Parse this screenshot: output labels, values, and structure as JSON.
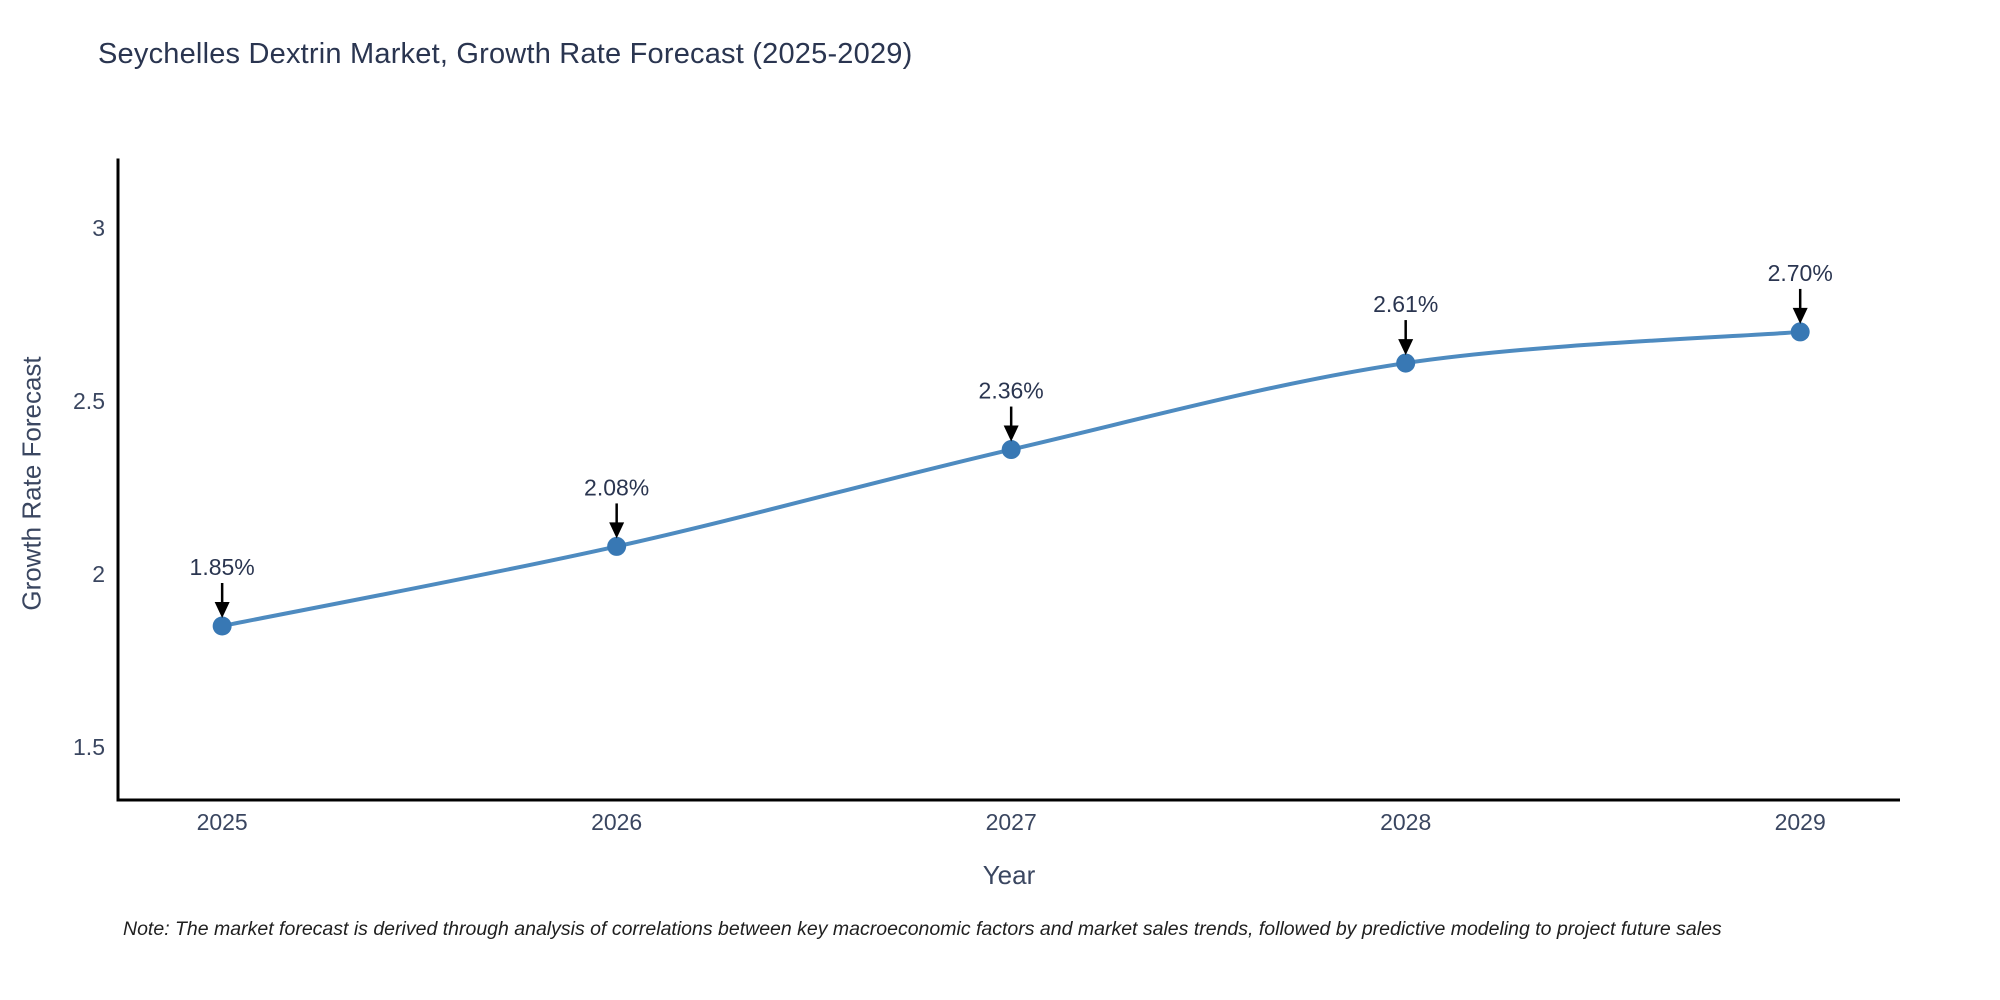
{
  "header": {
    "title": "Seychelles Dextrin Market, Growth Rate Forecast (2025-2029)"
  },
  "chart_data": {
    "type": "line",
    "title": "Seychelles Dextrin Market, Growth Rate Forecast (2025-2029)",
    "xlabel": "Year",
    "ylabel": "Growth Rate Forecast",
    "categories": [
      "2025",
      "2026",
      "2027",
      "2028",
      "2029"
    ],
    "x": [
      2025,
      2026,
      2027,
      2028,
      2029
    ],
    "values": [
      1.85,
      2.08,
      2.36,
      2.61,
      2.7
    ],
    "point_labels": [
      "1.85%",
      "2.08%",
      "2.36%",
      "2.61%",
      "2.70%"
    ],
    "yticks": [
      1.5,
      2,
      2.5,
      3
    ],
    "ytick_labels": [
      "1.5",
      "2",
      "2.5",
      "3"
    ],
    "xlim": [
      2024.736,
      2029.253
    ],
    "ylim": [
      1.347,
      3.197
    ],
    "grid": false,
    "legend": "none",
    "line_color": "#4e8bc0",
    "marker_color": "#3878b4",
    "axis_color": "#000000",
    "tick_color": "#3a4660",
    "annotation_color": "#2a3550",
    "arrow_color": "#000000"
  },
  "note": {
    "text": "Note: The market forecast is derived through analysis of correlations between key macroeconomic factors and market sales trends, followed by predictive modeling to project future sales"
  }
}
